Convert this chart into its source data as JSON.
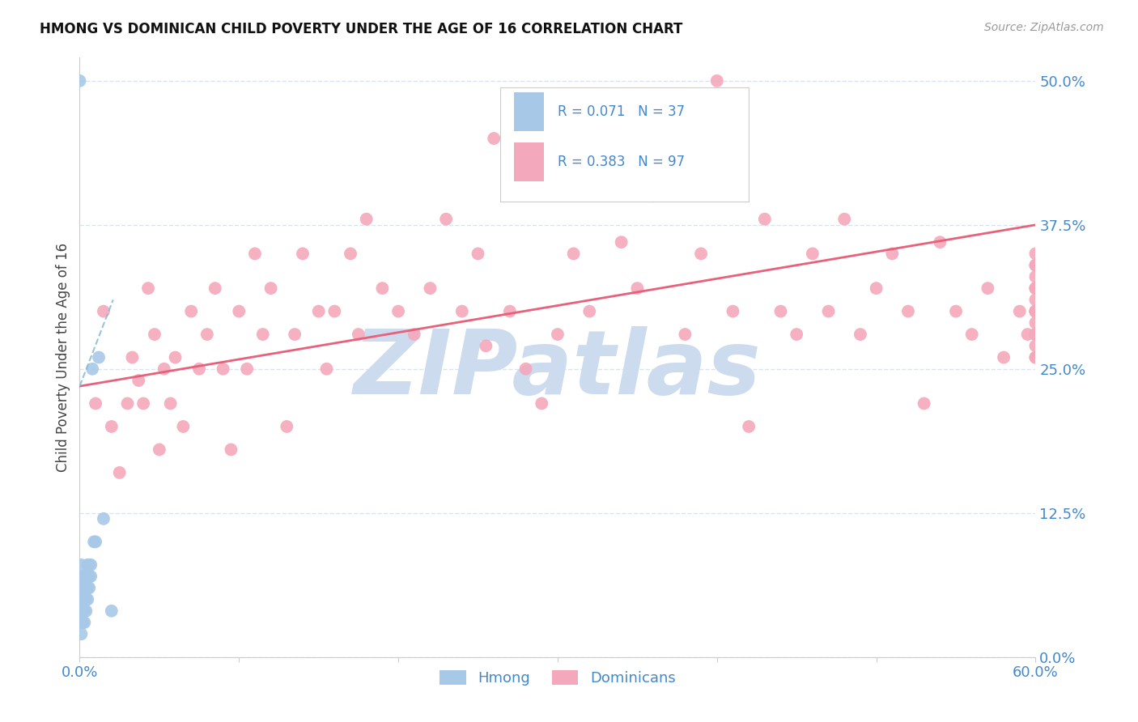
{
  "title": "HMONG VS DOMINICAN CHILD POVERTY UNDER THE AGE OF 16 CORRELATION CHART",
  "source": "Source: ZipAtlas.com",
  "ylabel": "Child Poverty Under the Age of 16",
  "ytick_labels": [
    "0.0%",
    "12.5%",
    "25.0%",
    "37.5%",
    "50.0%"
  ],
  "ytick_values": [
    0.0,
    0.125,
    0.25,
    0.375,
    0.5
  ],
  "xtick_values": [
    0.0,
    0.1,
    0.2,
    0.3,
    0.4,
    0.5,
    0.6
  ],
  "xlim": [
    0.0,
    0.6
  ],
  "ylim": [
    0.0,
    0.52
  ],
  "hmong_R": 0.071,
  "hmong_N": 37,
  "dominican_R": 0.383,
  "dominican_N": 97,
  "hmong_color": "#a8c8e8",
  "dominican_color": "#f4a8bc",
  "hmong_line_color": "#88b8d8",
  "dominican_line_color": "#e8607a",
  "watermark_text": "ZIPatlas",
  "watermark_color": "#ccdcee",
  "title_color": "#111111",
  "axis_label_color": "#4488cc",
  "tick_label_color": "#4488cc",
  "background_color": "#ffffff",
  "grid_color": "#d8e4f0",
  "legend_border_color": "#cccccc",
  "hmong_x": [
    0.0,
    0.0,
    0.0,
    0.001,
    0.001,
    0.001,
    0.001,
    0.001,
    0.001,
    0.002,
    0.002,
    0.002,
    0.002,
    0.003,
    0.003,
    0.003,
    0.003,
    0.003,
    0.004,
    0.004,
    0.004,
    0.004,
    0.005,
    0.005,
    0.005,
    0.005,
    0.006,
    0.006,
    0.006,
    0.007,
    0.007,
    0.008,
    0.009,
    0.01,
    0.012,
    0.015,
    0.02
  ],
  "hmong_y": [
    0.03,
    0.07,
    0.5,
    0.02,
    0.03,
    0.04,
    0.05,
    0.06,
    0.08,
    0.03,
    0.04,
    0.05,
    0.06,
    0.03,
    0.04,
    0.05,
    0.06,
    0.07,
    0.04,
    0.05,
    0.06,
    0.07,
    0.05,
    0.06,
    0.07,
    0.08,
    0.06,
    0.07,
    0.08,
    0.07,
    0.08,
    0.25,
    0.1,
    0.1,
    0.26,
    0.12,
    0.04
  ],
  "dominican_x": [
    0.01,
    0.015,
    0.02,
    0.025,
    0.03,
    0.033,
    0.037,
    0.04,
    0.043,
    0.047,
    0.05,
    0.053,
    0.057,
    0.06,
    0.065,
    0.07,
    0.075,
    0.08,
    0.085,
    0.09,
    0.095,
    0.1,
    0.105,
    0.11,
    0.115,
    0.12,
    0.13,
    0.135,
    0.14,
    0.15,
    0.155,
    0.16,
    0.17,
    0.175,
    0.18,
    0.19,
    0.2,
    0.21,
    0.22,
    0.23,
    0.24,
    0.25,
    0.255,
    0.26,
    0.27,
    0.28,
    0.29,
    0.3,
    0.31,
    0.32,
    0.33,
    0.34,
    0.35,
    0.36,
    0.37,
    0.38,
    0.39,
    0.4,
    0.41,
    0.42,
    0.43,
    0.44,
    0.45,
    0.46,
    0.47,
    0.48,
    0.49,
    0.5,
    0.51,
    0.52,
    0.53,
    0.54,
    0.55,
    0.56,
    0.57,
    0.58,
    0.59,
    0.595,
    0.6,
    0.6,
    0.6,
    0.6,
    0.6,
    0.6,
    0.6,
    0.6,
    0.6,
    0.6,
    0.6,
    0.6,
    0.6,
    0.6,
    0.6,
    0.6,
    0.6,
    0.6,
    0.6
  ],
  "dominican_y": [
    0.22,
    0.3,
    0.2,
    0.16,
    0.22,
    0.26,
    0.24,
    0.22,
    0.32,
    0.28,
    0.18,
    0.25,
    0.22,
    0.26,
    0.2,
    0.3,
    0.25,
    0.28,
    0.32,
    0.25,
    0.18,
    0.3,
    0.25,
    0.35,
    0.28,
    0.32,
    0.2,
    0.28,
    0.35,
    0.3,
    0.25,
    0.3,
    0.35,
    0.28,
    0.38,
    0.32,
    0.3,
    0.28,
    0.32,
    0.38,
    0.3,
    0.35,
    0.27,
    0.45,
    0.3,
    0.25,
    0.22,
    0.28,
    0.35,
    0.3,
    0.48,
    0.36,
    0.32,
    0.4,
    0.45,
    0.28,
    0.35,
    0.5,
    0.3,
    0.2,
    0.38,
    0.3,
    0.28,
    0.35,
    0.3,
    0.38,
    0.28,
    0.32,
    0.35,
    0.3,
    0.22,
    0.36,
    0.3,
    0.28,
    0.32,
    0.26,
    0.3,
    0.28,
    0.32,
    0.3,
    0.34,
    0.26,
    0.28,
    0.32,
    0.3,
    0.35,
    0.27,
    0.33,
    0.29,
    0.31,
    0.28,
    0.34,
    0.26,
    0.3,
    0.32,
    0.28,
    0.3
  ],
  "dominican_line_x0": 0.0,
  "dominican_line_y0": 0.235,
  "dominican_line_x1": 0.6,
  "dominican_line_y1": 0.375,
  "hmong_line_x0": 0.0,
  "hmong_line_y0": 0.235,
  "hmong_line_x1": 0.021,
  "hmong_line_y1": 0.31
}
